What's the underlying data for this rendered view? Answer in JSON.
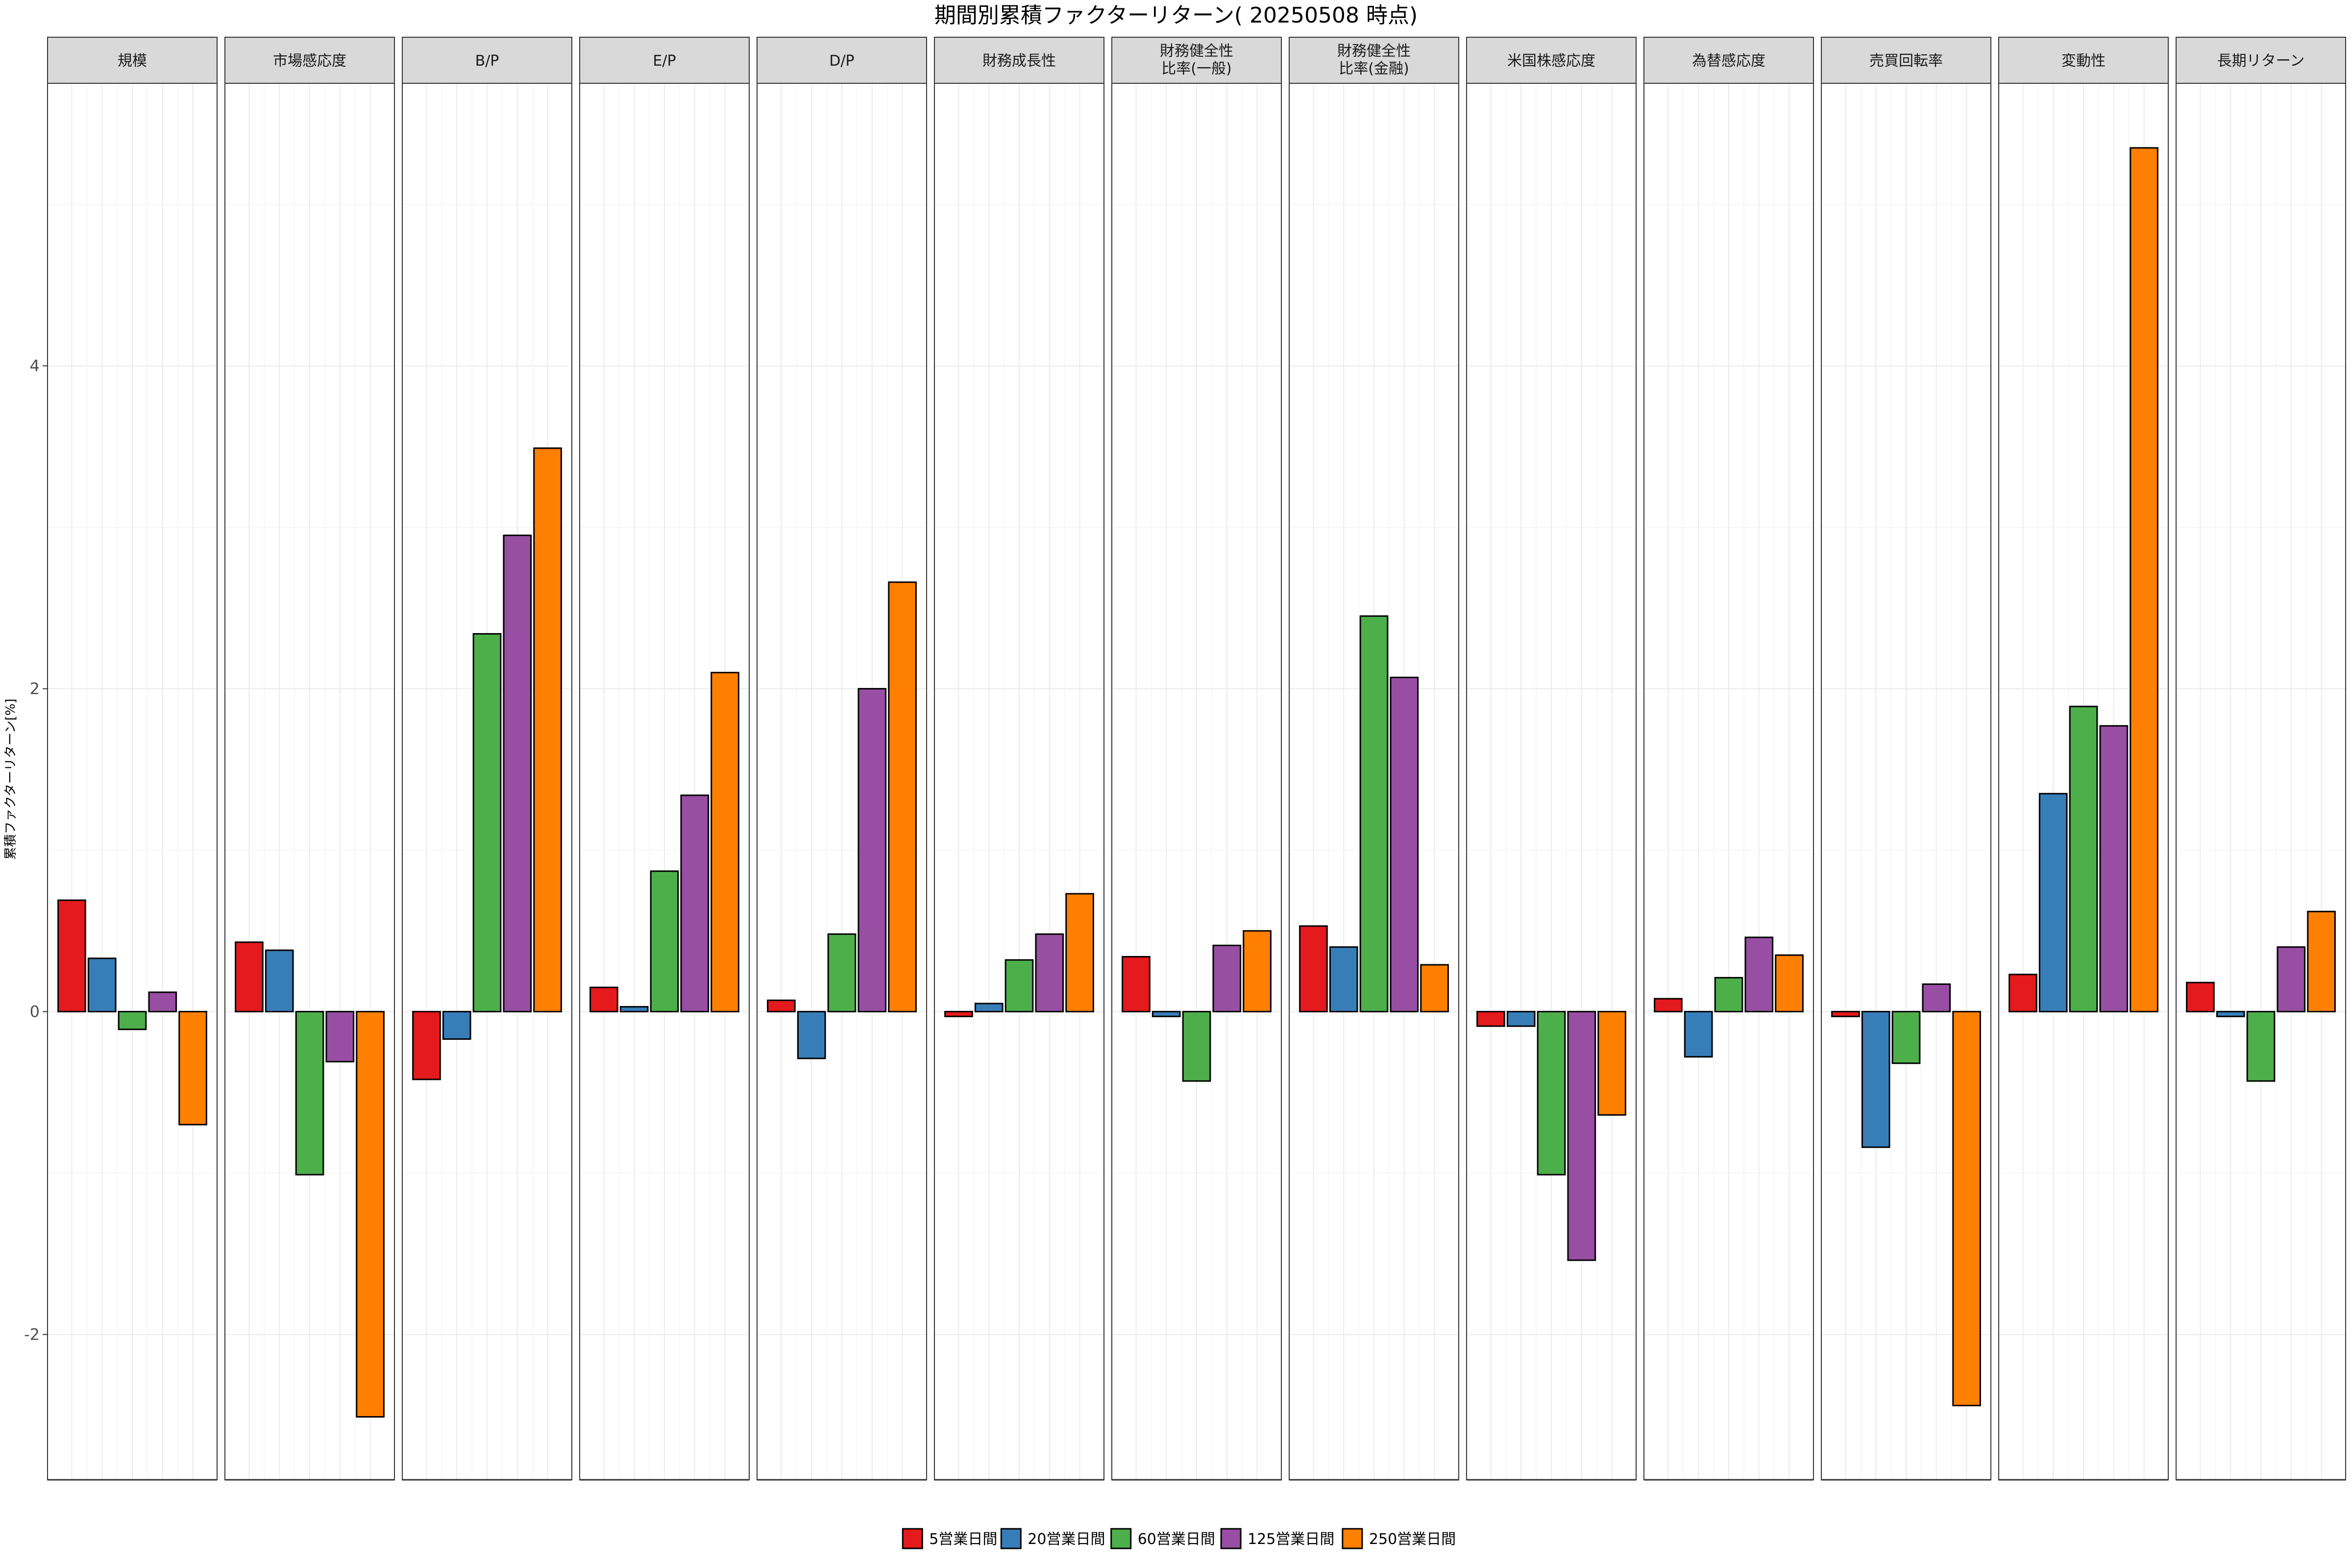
{
  "chart_data": {
    "type": "bar",
    "title": "期間別累積ファクターリターン( 20250508 時点)",
    "ylabel": "累積ファクターリターン[%]",
    "xlabel": "",
    "ylim": [
      -2.9,
      5.75
    ],
    "yticks": [
      -2,
      0,
      2,
      4
    ],
    "grid": true,
    "legend_position": "bottom",
    "facets": [
      [
        "規模"
      ],
      [
        "市場感応度"
      ],
      [
        "B/P"
      ],
      [
        "E/P"
      ],
      [
        "D/P"
      ],
      [
        "財務成長性"
      ],
      [
        "財務健全性",
        "比率(一般)"
      ],
      [
        "財務健全性",
        "比率(金融)"
      ],
      [
        "米国株感応度"
      ],
      [
        "為替感応度"
      ],
      [
        "売買回転率"
      ],
      [
        "変動性"
      ],
      [
        "長期リターン"
      ]
    ],
    "series": [
      {
        "name": "5営業日間",
        "color": "#e41a1c",
        "values": [
          0.69,
          0.43,
          -0.42,
          0.15,
          0.07,
          -0.03,
          0.34,
          0.53,
          -0.09,
          0.08,
          -0.03,
          0.23,
          0.18
        ]
      },
      {
        "name": "20営業日間",
        "color": "#377eb8",
        "values": [
          0.33,
          0.38,
          -0.17,
          0.03,
          -0.29,
          0.05,
          -0.03,
          0.4,
          -0.09,
          -0.28,
          -0.84,
          1.35,
          -0.03
        ]
      },
      {
        "name": "60営業日間",
        "color": "#4daf4a",
        "values": [
          -0.11,
          -1.01,
          2.34,
          0.87,
          0.48,
          0.32,
          -0.43,
          2.45,
          -1.01,
          0.21,
          -0.32,
          1.89,
          -0.43
        ]
      },
      {
        "name": "125営業日間",
        "color": "#984ea3",
        "values": [
          0.12,
          -0.31,
          2.95,
          1.34,
          2.0,
          0.48,
          0.41,
          2.07,
          -1.54,
          0.46,
          0.17,
          1.77,
          0.4
        ]
      },
      {
        "name": "250営業日間",
        "color": "#ff7f00",
        "values": [
          -0.7,
          -2.51,
          3.49,
          2.1,
          2.66,
          0.73,
          0.5,
          0.29,
          -0.64,
          0.35,
          -2.44,
          5.35,
          0.62
        ]
      }
    ]
  }
}
